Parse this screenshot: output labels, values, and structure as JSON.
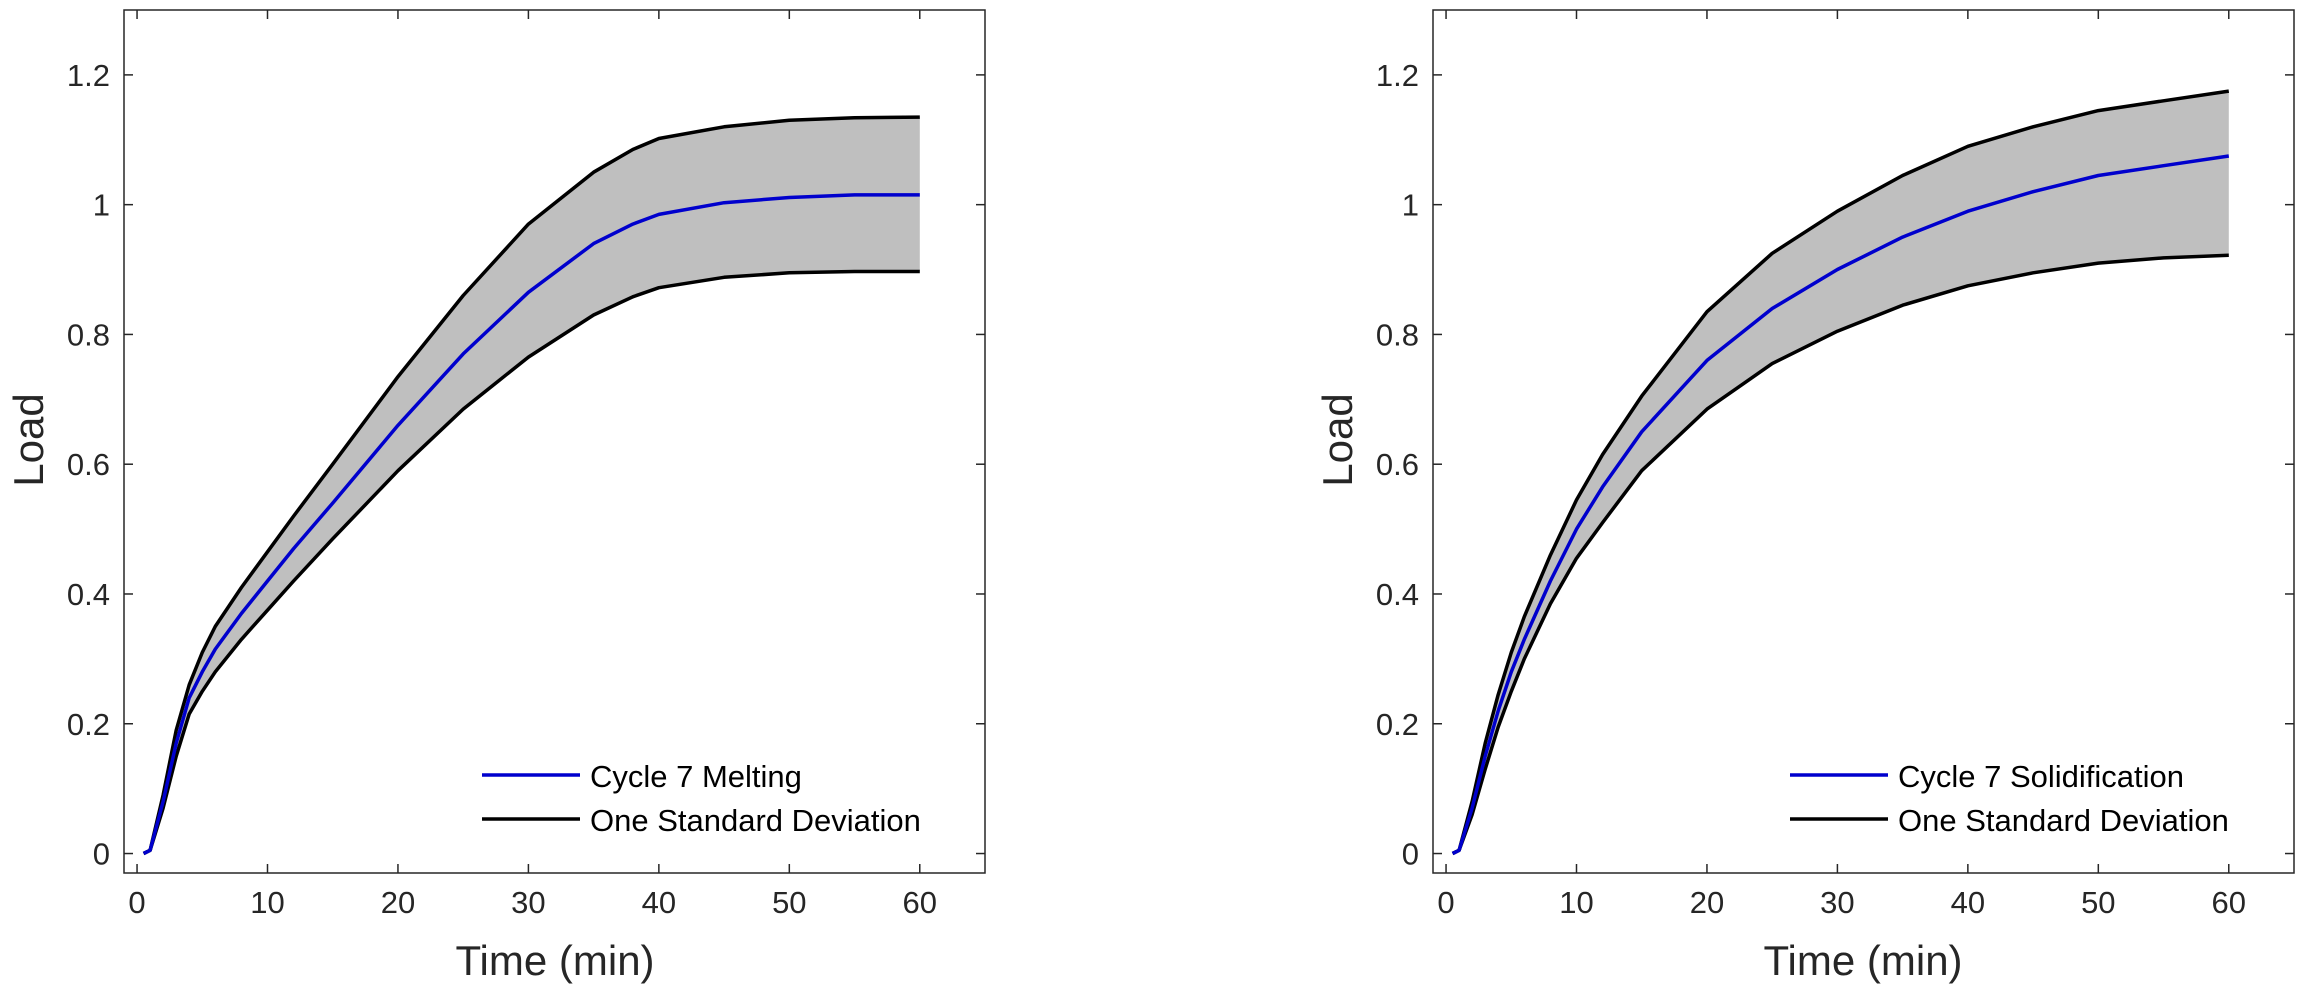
{
  "colors": {
    "background": "#ffffff",
    "axis": "#262626",
    "band_fill": "#bfbfbf",
    "mean_line": "#0000cd",
    "sd_line": "#000000"
  },
  "chart_data": [
    {
      "type": "line",
      "title": "",
      "xlabel": "Time (min)",
      "ylabel": "Load",
      "xlim": [
        -1,
        65
      ],
      "ylim": [
        -0.03,
        1.3
      ],
      "xticks": [
        0,
        10,
        20,
        30,
        40,
        50,
        60
      ],
      "yticks": [
        0,
        0.2,
        0.4,
        0.6,
        0.8,
        1,
        1.2
      ],
      "ytick_labels": [
        "0",
        "0.2",
        "0.4",
        "0.6",
        "0.8",
        "1",
        "1.2"
      ],
      "grid": false,
      "legend_location": "bottom-right",
      "legend": [
        "Cycle 7 Melting",
        "One Standard Deviation"
      ],
      "x": [
        0.5,
        1,
        2,
        3,
        4,
        5,
        6,
        8,
        10,
        12,
        15,
        20,
        25,
        30,
        35,
        38,
        40,
        45,
        50,
        55,
        60
      ],
      "series": [
        {
          "name": "Cycle 7 Melting",
          "role": "mean",
          "values": [
            0,
            0.005,
            0.08,
            0.17,
            0.24,
            0.28,
            0.315,
            0.37,
            0.42,
            0.47,
            0.54,
            0.66,
            0.77,
            0.865,
            0.94,
            0.97,
            0.985,
            1.003,
            1.011,
            1.015,
            1.015
          ]
        },
        {
          "name": "One Standard Deviation",
          "role": "upper",
          "values": [
            0,
            0.005,
            0.09,
            0.19,
            0.26,
            0.31,
            0.35,
            0.41,
            0.465,
            0.52,
            0.6,
            0.735,
            0.86,
            0.97,
            1.05,
            1.085,
            1.102,
            1.12,
            1.13,
            1.134,
            1.135
          ]
        },
        {
          "name": "One Standard Deviation",
          "role": "lower",
          "values": [
            0,
            0.005,
            0.07,
            0.15,
            0.215,
            0.25,
            0.28,
            0.33,
            0.375,
            0.42,
            0.485,
            0.59,
            0.685,
            0.765,
            0.83,
            0.858,
            0.872,
            0.888,
            0.895,
            0.897,
            0.897
          ]
        }
      ]
    },
    {
      "type": "line",
      "title": "",
      "xlabel": "Time (min)",
      "ylabel": "Load",
      "xlim": [
        -1,
        65
      ],
      "ylim": [
        -0.03,
        1.3
      ],
      "xticks": [
        0,
        10,
        20,
        30,
        40,
        50,
        60
      ],
      "yticks": [
        0,
        0.2,
        0.4,
        0.6,
        0.8,
        1,
        1.2
      ],
      "ytick_labels": [
        "0",
        "0.2",
        "0.4",
        "0.6",
        "0.8",
        "1",
        "1.2"
      ],
      "grid": false,
      "legend_location": "bottom-right",
      "legend": [
        "Cycle 7 Solidification",
        "One Standard Deviation"
      ],
      "x": [
        0.5,
        1,
        2,
        3,
        4,
        5,
        6,
        8,
        10,
        12,
        15,
        20,
        25,
        30,
        35,
        40,
        45,
        50,
        55,
        60
      ],
      "series": [
        {
          "name": "Cycle 7 Solidification",
          "role": "mean",
          "values": [
            0,
            0.005,
            0.07,
            0.15,
            0.22,
            0.28,
            0.33,
            0.42,
            0.5,
            0.565,
            0.65,
            0.76,
            0.84,
            0.9,
            0.95,
            0.99,
            1.02,
            1.045,
            1.06,
            1.075
          ]
        },
        {
          "name": "One Standard Deviation",
          "role": "upper",
          "values": [
            0,
            0.005,
            0.08,
            0.17,
            0.245,
            0.31,
            0.365,
            0.46,
            0.545,
            0.615,
            0.705,
            0.835,
            0.925,
            0.99,
            1.045,
            1.09,
            1.12,
            1.145,
            1.16,
            1.175
          ]
        },
        {
          "name": "One Standard Deviation",
          "role": "lower",
          "values": [
            0,
            0.005,
            0.06,
            0.13,
            0.195,
            0.25,
            0.3,
            0.385,
            0.455,
            0.51,
            0.59,
            0.685,
            0.755,
            0.805,
            0.845,
            0.875,
            0.895,
            0.91,
            0.918,
            0.922
          ]
        }
      ]
    }
  ]
}
